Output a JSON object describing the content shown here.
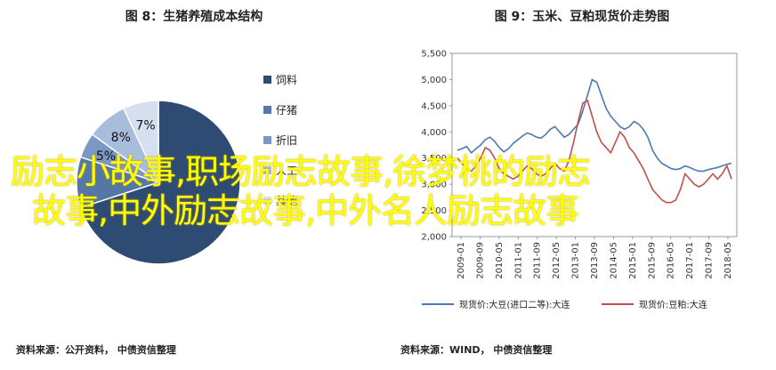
{
  "left_chart": {
    "title": "图 8：生猪养殖成本结构",
    "source": "资料来源：公开资料， 中债资信整理"
  },
  "right_chart": {
    "title": "图 9：玉米、豆粕现货价走势图",
    "source": "资料来源：WIND， 中债资信整理"
  },
  "overlay": {
    "line1": "励志小故事,职场励志故事,徐梦桃的励志",
    "line2": "故事,中外励志故事,中外名人励志故事"
  },
  "colors": {
    "feed": "#2e4b73",
    "piglet": "#5577a8",
    "depreciation": "#7b97c4",
    "labor": "#a8bcdc",
    "other": "#d5dff0",
    "corn": "#4a7ab5",
    "soymeal": "#c0504d"
  },
  "chart_data": [
    {
      "type": "pie",
      "title": "图 8：生猪养殖成本结构",
      "slices": [
        {
          "label": "饲料",
          "value": 70,
          "data_label": ""
        },
        {
          "label": "仔猪",
          "value": 10,
          "data_label": ""
        },
        {
          "label": "折旧",
          "value": 5,
          "data_label": "5%"
        },
        {
          "label": "人工",
          "value": 8,
          "data_label": "8%"
        },
        {
          "label": "其他",
          "value": 7,
          "data_label": "7%"
        }
      ],
      "legend": [
        "饲料",
        "仔猪",
        "折旧",
        "人工",
        "其他"
      ],
      "legend_position": "right"
    },
    {
      "type": "line",
      "title": "图 9：玉米、豆粕现货价走势图",
      "ylim": [
        2000,
        5500
      ],
      "yticks": [
        "2,000",
        "2,500",
        "3,000",
        "3,500",
        "4,000",
        "4,500",
        "5,000",
        "5,500"
      ],
      "xticks": [
        "2009-01",
        "2009-09",
        "2010-05",
        "2011-01",
        "2011-09",
        "2012-05",
        "2013-01",
        "2013-09",
        "2014-05",
        "2015-01",
        "2015-09",
        "2016-05",
        "2017-01",
        "2017-09",
        "2018-05"
      ],
      "legend_position": "bottom",
      "series": [
        {
          "name": "现货价:大豆(进口二等):大连",
          "color": "corn",
          "values": [
            3650,
            3680,
            3720,
            3600,
            3680,
            3750,
            3850,
            3900,
            3820,
            3700,
            3620,
            3680,
            3780,
            3850,
            3920,
            3980,
            3950,
            3900,
            3880,
            3950,
            4050,
            4100,
            4000,
            3900,
            3950,
            4050,
            4150,
            4400,
            4700,
            5000,
            4950,
            4700,
            4450,
            4300,
            4200,
            4100,
            4050,
            4100,
            4200,
            4150,
            4050,
            3900,
            3650,
            3500,
            3400,
            3350,
            3300,
            3280,
            3300,
            3350,
            3320,
            3280,
            3250,
            3250,
            3280,
            3300,
            3320,
            3350,
            3380,
            3400
          ]
        },
        {
          "name": "现货价:豆粕:大连",
          "color": "soymeal",
          "values": [
            3500,
            3400,
            3300,
            3250,
            3350,
            3500,
            3700,
            3650,
            3500,
            3300,
            3200,
            3150,
            3100,
            3150,
            3250,
            3350,
            3300,
            3200,
            3150,
            3200,
            3300,
            3400,
            3300,
            3250,
            3450,
            3800,
            4200,
            4550,
            4600,
            4300,
            4000,
            3800,
            3700,
            3600,
            3800,
            4000,
            3900,
            3700,
            3600,
            3450,
            3300,
            3100,
            2900,
            2800,
            2700,
            2650,
            2650,
            2700,
            2900,
            3200,
            3100,
            3000,
            2950,
            3000,
            3100,
            3200,
            3100,
            3200,
            3350,
            3100
          ]
        }
      ]
    }
  ]
}
